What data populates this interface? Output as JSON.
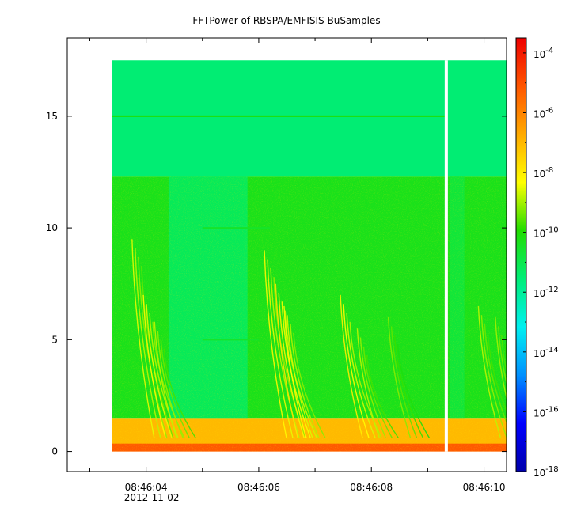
{
  "chart_data": {
    "type": "heatmap",
    "title": "FFTPower of RBSPA/EMFISIS  BuSamples",
    "xlabel": "",
    "ylabel": "",
    "x_range_seconds": [
      "08:46:02.6",
      "08:46:10.4"
    ],
    "x_ticks": [
      {
        "label": "08:46:04",
        "sublabel": "2012-11-02",
        "t": 4.0
      },
      {
        "label": "08:46:06",
        "sublabel": "",
        "t": 6.0
      },
      {
        "label": "08:46:08",
        "sublabel": "",
        "t": 8.0
      },
      {
        "label": "08:46:10",
        "sublabel": "",
        "t": 10.0
      }
    ],
    "x_minor_ticks": [
      3.0,
      5.0,
      7.0,
      9.0
    ],
    "xlim": [
      2.6,
      10.4
    ],
    "ylim": [
      -0.9,
      18.5
    ],
    "y_ticks": [
      {
        "label": "0",
        "v": 0
      },
      {
        "label": "5",
        "v": 5
      },
      {
        "label": "10",
        "v": 10
      },
      {
        "label": "15",
        "v": 15
      }
    ],
    "data_extent": {
      "t_start": 3.4,
      "t_end": 10.4,
      "f_min": 0.0,
      "f_max": 17.5
    },
    "data_gap": {
      "t": 9.33
    },
    "background_bands": [
      {
        "f_from": 0.0,
        "f_to": 1.5,
        "level": -7.0
      },
      {
        "f_from": 1.5,
        "f_to": 12.3,
        "level": -10.3
      },
      {
        "f_from": 12.3,
        "f_to": 17.5,
        "level": -11.5
      }
    ],
    "quiet_intervals": [
      {
        "t_from": 4.4,
        "t_to": 5.8,
        "level": -11.3
      },
      {
        "t_from": 9.4,
        "t_to": 9.65,
        "level": -10.8
      }
    ],
    "tone_lines": [
      {
        "f": 15.0,
        "t_from": 3.4,
        "t_to": 9.3,
        "level": -10.0
      },
      {
        "f": 10.0,
        "t_from": 5.0,
        "t_to": 6.2,
        "level": -10.5
      },
      {
        "f": 5.0,
        "t_from": 5.0,
        "t_to": 6.0,
        "level": -10.5
      }
    ],
    "chorus_bursts": [
      {
        "t": 3.75,
        "f_top": 9.5,
        "level": -8.5
      },
      {
        "t": 3.95,
        "f_top": 7.0,
        "level": -8.2
      },
      {
        "t": 4.15,
        "f_top": 5.8,
        "level": -8.8
      },
      {
        "t": 6.1,
        "f_top": 9.0,
        "level": -8.2
      },
      {
        "t": 6.3,
        "f_top": 7.5,
        "level": -7.8
      },
      {
        "t": 6.45,
        "f_top": 6.5,
        "level": -8.3
      },
      {
        "t": 7.45,
        "f_top": 7.0,
        "level": -8.0
      },
      {
        "t": 7.75,
        "f_top": 5.5,
        "level": -8.8
      },
      {
        "t": 8.3,
        "f_top": 6.0,
        "level": -9.2
      },
      {
        "t": 9.9,
        "f_top": 6.5,
        "level": -8.8
      },
      {
        "t": 10.2,
        "f_top": 6.0,
        "level": -9.0
      }
    ],
    "colorbar": {
      "range_log10": [
        -18.0,
        -3.5
      ],
      "ticks": [
        {
          "base": "10",
          "exp": "-4",
          "v": -4
        },
        {
          "base": "10",
          "exp": "-6",
          "v": -6
        },
        {
          "base": "10",
          "exp": "-8",
          "v": -8
        },
        {
          "base": "10",
          "exp": "-10",
          "v": -10
        },
        {
          "base": "10",
          "exp": "-12",
          "v": -12
        },
        {
          "base": "10",
          "exp": "-14",
          "v": -14
        },
        {
          "base": "10",
          "exp": "-16",
          "v": -16
        },
        {
          "base": "10",
          "exp": "-18",
          "v": -18
        }
      ],
      "colormap": [
        "#0000aa",
        "#0000ff",
        "#0090ff",
        "#00f0f0",
        "#00ee77",
        "#22dd00",
        "#ffff00",
        "#ffaa00",
        "#ff5500",
        "#ee0000"
      ]
    },
    "grid": false,
    "legend": "none"
  }
}
